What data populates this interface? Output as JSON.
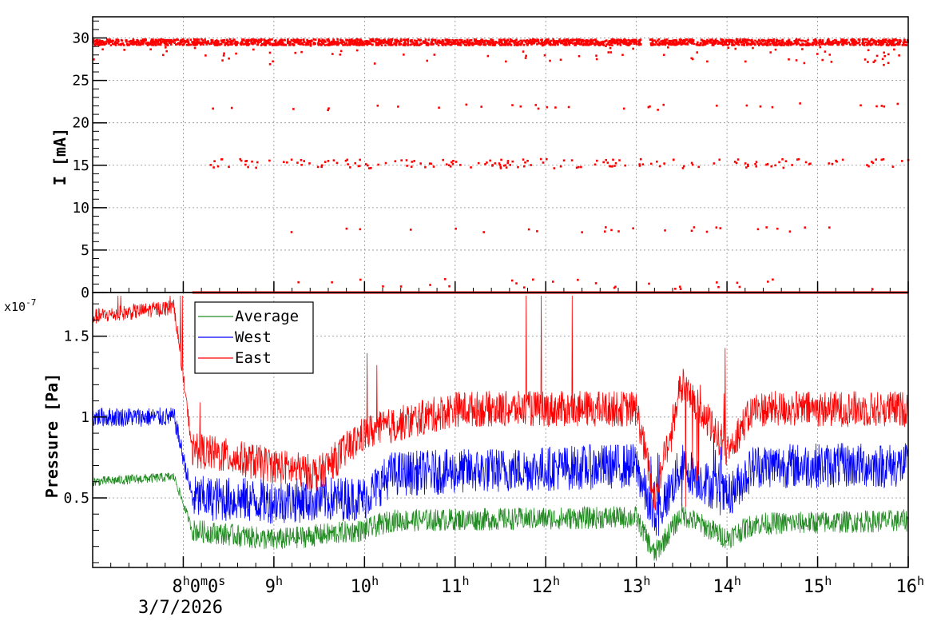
{
  "chart_data": [
    {
      "type": "scatter",
      "panel": "top",
      "ylabel": "I [mA]",
      "ylim": [
        0,
        32.5
      ],
      "yticks": [
        "0",
        "5",
        "10",
        "15",
        "20",
        "25",
        "30"
      ],
      "xlim_hours": [
        7.0,
        16.0
      ],
      "grid": true,
      "color": "#ff0000",
      "series": [
        {
          "bands": [
            {
              "level": 29.5,
              "spread": 0.35,
              "coverage": [
                [
                  7.0,
                  13.05
                ],
                [
                  13.15,
                  16.0
                ]
              ]
            },
            {
              "level": 0.0,
              "spread": 0.0,
              "coverage": [
                [
                  8.1,
                  16.0
                ]
              ]
            },
            {
              "level": 15.2,
              "spread": 0.55,
              "sparse": true,
              "coverage": [
                [
                  8.2,
                  16.0
                ]
              ]
            },
            {
              "level": 21.9,
              "spread": 0.4,
              "sparse": true,
              "coverage": [
                [
                  8.0,
                  16.0
                ]
              ]
            },
            {
              "level": 7.4,
              "spread": 0.3,
              "sparse": true,
              "coverage": [
                [
                  9.0,
                  15.5
                ]
              ]
            },
            {
              "level": 1.0,
              "spread": 0.6,
              "sparse": true,
              "coverage": [
                [
                  8.6,
                  15.7
                ]
              ]
            }
          ]
        }
      ]
    },
    {
      "type": "line",
      "panel": "bottom",
      "ylabel": "Pressure [Pa]",
      "y_exponent": "x10",
      "y_exponent_power": "-7",
      "ylim": [
        0.07,
        1.77
      ],
      "yticks": [
        "0.5",
        "1",
        "1.5"
      ],
      "xlim_hours": [
        7.0,
        16.0
      ],
      "grid": true,
      "legend_position": "top-left",
      "series": [
        {
          "name": "Average",
          "color": "#228b22",
          "segments": [
            [
              7.0,
              0.6
            ],
            [
              7.9,
              0.63
            ],
            [
              8.1,
              0.3
            ],
            [
              9.0,
              0.24
            ],
            [
              10.0,
              0.3
            ],
            [
              10.3,
              0.36
            ],
            [
              13.0,
              0.38
            ],
            [
              13.2,
              0.15
            ],
            [
              13.5,
              0.4
            ],
            [
              14.0,
              0.25
            ],
            [
              14.3,
              0.34
            ],
            [
              16.0,
              0.36
            ]
          ]
        },
        {
          "name": "West",
          "color": "#0000ff",
          "segments": [
            [
              7.0,
              1.0
            ],
            [
              7.9,
              1.0
            ],
            [
              8.1,
              0.5
            ],
            [
              9.0,
              0.48
            ],
            [
              10.0,
              0.5
            ],
            [
              10.3,
              0.65
            ],
            [
              13.0,
              0.7
            ],
            [
              13.2,
              0.35
            ],
            [
              13.5,
              0.7
            ],
            [
              14.0,
              0.5
            ],
            [
              14.3,
              0.7
            ],
            [
              16.0,
              0.7
            ]
          ]
        },
        {
          "name": "East",
          "color": "#ff0000",
          "segments": [
            [
              7.0,
              1.62
            ],
            [
              7.9,
              1.68
            ],
            [
              8.1,
              0.8
            ],
            [
              9.0,
              0.7
            ],
            [
              9.5,
              0.65
            ],
            [
              10.0,
              0.9
            ],
            [
              11.0,
              1.05
            ],
            [
              13.0,
              1.05
            ],
            [
              13.2,
              0.5
            ],
            [
              13.5,
              1.2
            ],
            [
              14.0,
              0.8
            ],
            [
              14.3,
              1.05
            ],
            [
              16.0,
              1.05
            ]
          ]
        }
      ]
    }
  ],
  "time_axis": {
    "ticks": [
      {
        "hour": 8,
        "main": "8",
        "sup": "h",
        "rest": "0",
        "sup2": "m",
        "rest2": "0",
        "sup3": "s"
      },
      {
        "hour": 9,
        "main": "9",
        "sup": "h"
      },
      {
        "hour": 10,
        "main": "10",
        "sup": "h"
      },
      {
        "hour": 11,
        "main": "11",
        "sup": "h"
      },
      {
        "hour": 12,
        "main": "12",
        "sup": "h"
      },
      {
        "hour": 13,
        "main": "13",
        "sup": "h"
      },
      {
        "hour": 14,
        "main": "14",
        "sup": "h"
      },
      {
        "hour": 15,
        "main": "15",
        "sup": "h"
      },
      {
        "hour": 16,
        "main": "16",
        "sup": "h"
      }
    ],
    "date": "3/7/2026"
  },
  "colors": {
    "frame": "#000000",
    "grid": "#8c8c8c"
  }
}
